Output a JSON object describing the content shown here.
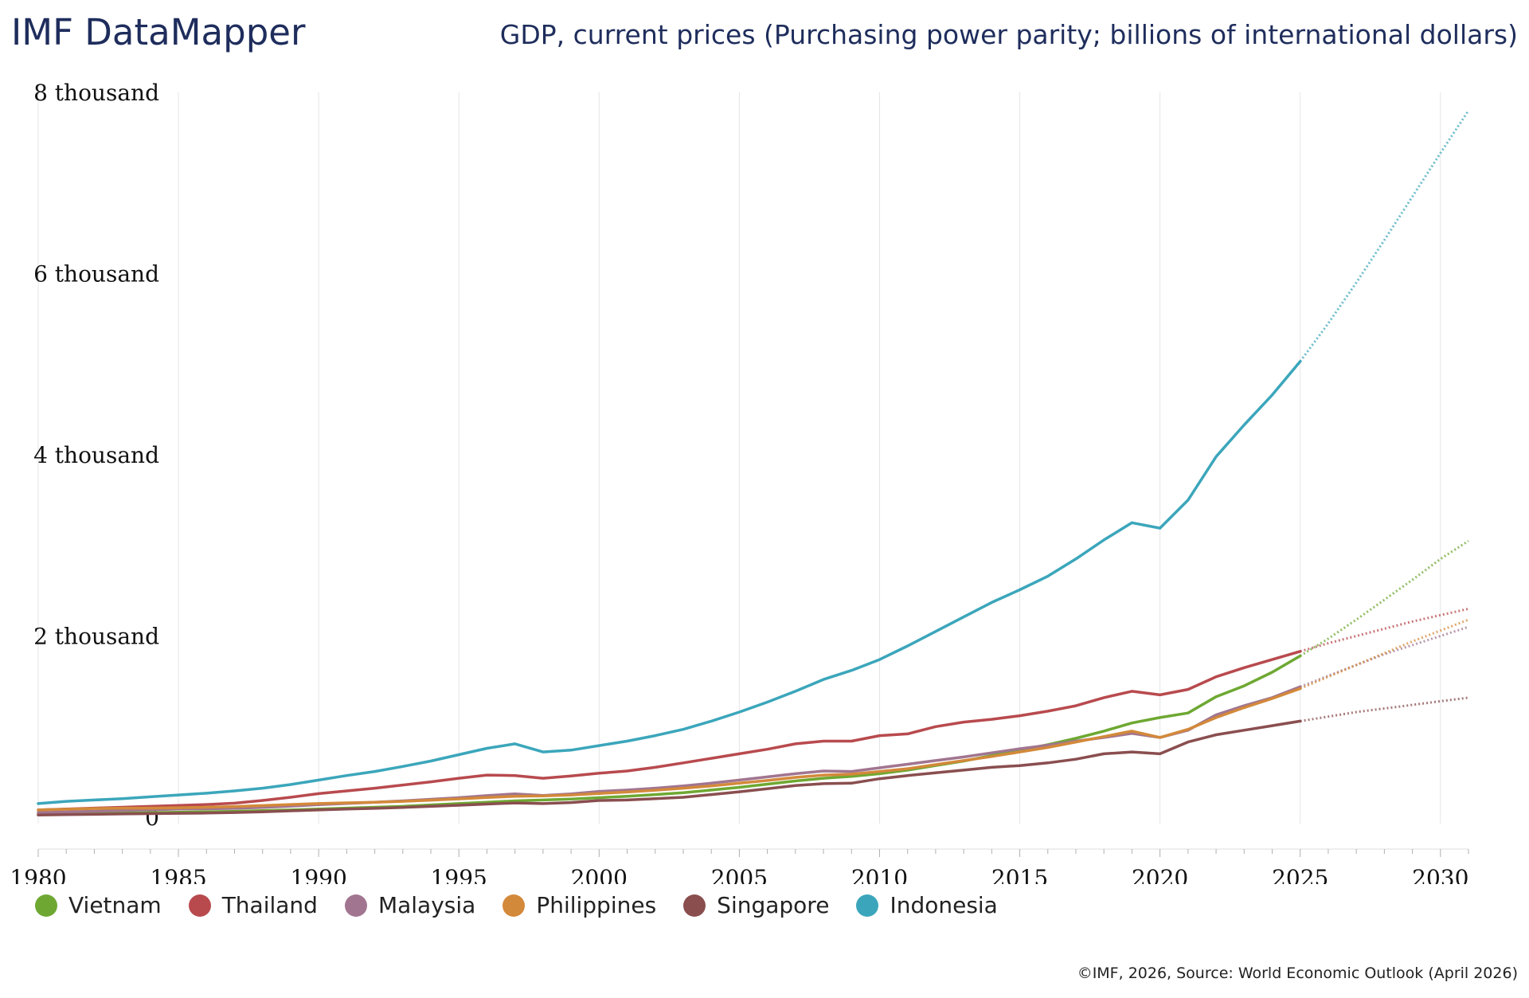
{
  "header": {
    "brand": "IMF DataMapper",
    "title": "GDP, current prices (Purchasing power parity; billions of international dollars)"
  },
  "footer": {
    "source": "©IMF, 2026, Source: World Economic Outlook (April 2026)"
  },
  "chart_data": {
    "type": "line",
    "title": "GDP, current prices (Purchasing power parity; billions of international dollars)",
    "xlabel": "",
    "ylabel": "",
    "xlim": [
      1980,
      2031
    ],
    "ylim": [
      0,
      8000
    ],
    "xticks": [
      1980,
      1985,
      1990,
      1995,
      2000,
      2005,
      2010,
      2015,
      2020,
      2025,
      2030
    ],
    "yticks": [
      {
        "value": 0,
        "label": "0"
      },
      {
        "value": 2000,
        "label": "2 thousand"
      },
      {
        "value": 4000,
        "label": "4 thousand"
      },
      {
        "value": 6000,
        "label": "6 thousand"
      },
      {
        "value": 8000,
        "label": "8 thousand"
      }
    ],
    "grid": "vertical",
    "legend_position": "bottom-left",
    "forecast_start": 2025,
    "x": [
      1980,
      1981,
      1982,
      1983,
      1984,
      1985,
      1986,
      1987,
      1988,
      1989,
      1990,
      1991,
      1992,
      1993,
      1994,
      1995,
      1996,
      1997,
      1998,
      1999,
      2000,
      2001,
      2002,
      2003,
      2004,
      2005,
      2006,
      2007,
      2008,
      2009,
      2010,
      2011,
      2012,
      2013,
      2014,
      2015,
      2016,
      2017,
      2018,
      2019,
      2020,
      2021,
      2022,
      2023,
      2024,
      2025,
      2026,
      2027,
      2028,
      2029,
      2030,
      2031
    ],
    "series": [
      {
        "name": "Vietnam",
        "color": "#6ea832",
        "values": [
          30,
          35,
          40,
          45,
          50,
          55,
          60,
          65,
          72,
          80,
          90,
          100,
          110,
          120,
          135,
          150,
          165,
          180,
          190,
          200,
          215,
          230,
          250,
          270,
          300,
          330,
          365,
          400,
          430,
          450,
          480,
          520,
          570,
          620,
          680,
          740,
          800,
          870,
          950,
          1040,
          1100,
          1150,
          1330,
          1450,
          1600,
          1780,
          1970,
          2180,
          2400,
          2620,
          2850,
          3050
        ]
      },
      {
        "name": "Thailand",
        "color": "#b84a4e",
        "values": [
          80,
          90,
          100,
          110,
          120,
          130,
          140,
          155,
          185,
          220,
          260,
          290,
          320,
          355,
          390,
          430,
          465,
          460,
          430,
          455,
          485,
          510,
          550,
          600,
          650,
          700,
          750,
          810,
          840,
          840,
          900,
          920,
          1000,
          1050,
          1080,
          1120,
          1170,
          1230,
          1320,
          1390,
          1350,
          1410,
          1550,
          1650,
          1740,
          1830,
          1920,
          2000,
          2080,
          2160,
          2230,
          2300
        ]
      },
      {
        "name": "Malaysia",
        "color": "#a17590",
        "values": [
          50,
          58,
          66,
          74,
          82,
          90,
          92,
          98,
          108,
          122,
          138,
          152,
          165,
          180,
          198,
          215,
          238,
          258,
          240,
          258,
          285,
          300,
          320,
          345,
          375,
          410,
          445,
          480,
          510,
          505,
          545,
          585,
          625,
          665,
          710,
          755,
          795,
          840,
          880,
          925,
          880,
          960,
          1130,
          1230,
          1320,
          1440,
          1560,
          1680,
          1800,
          1900,
          2000,
          2100
        ]
      },
      {
        "name": "Philippines",
        "color": "#d3893a",
        "values": [
          80,
          88,
          96,
          100,
          100,
          105,
          110,
          118,
          128,
          140,
          150,
          158,
          165,
          175,
          188,
          202,
          218,
          230,
          235,
          245,
          262,
          278,
          298,
          320,
          345,
          375,
          405,
          440,
          465,
          475,
          505,
          535,
          580,
          625,
          670,
          720,
          770,
          830,
          890,
          950,
          880,
          970,
          1100,
          1210,
          1310,
          1420,
          1550,
          1680,
          1810,
          1940,
          2060,
          2180
        ]
      },
      {
        "name": "Singapore",
        "color": "#8a4e4f",
        "values": [
          25,
          28,
          32,
          36,
          40,
          43,
          46,
          52,
          60,
          70,
          80,
          90,
          98,
          108,
          120,
          132,
          145,
          157,
          150,
          162,
          185,
          190,
          205,
          220,
          250,
          280,
          315,
          350,
          370,
          375,
          425,
          460,
          490,
          520,
          550,
          570,
          600,
          640,
          700,
          720,
          700,
          830,
          910,
          960,
          1010,
          1060,
          1110,
          1160,
          1200,
          1240,
          1280,
          1320
        ]
      },
      {
        "name": "Indonesia",
        "color": "#3ba6bb",
        "values": [
          150,
          175,
          190,
          205,
          225,
          245,
          265,
          290,
          320,
          360,
          410,
          460,
          505,
          560,
          620,
          690,
          760,
          810,
          720,
          740,
          790,
          840,
          900,
          970,
          1060,
          1160,
          1270,
          1390,
          1520,
          1620,
          1740,
          1890,
          2050,
          2210,
          2370,
          2510,
          2660,
          2850,
          3060,
          3250,
          3190,
          3500,
          3980,
          4330,
          4660,
          5030,
          5450,
          5900,
          6370,
          6850,
          7330,
          7800
        ]
      }
    ]
  }
}
